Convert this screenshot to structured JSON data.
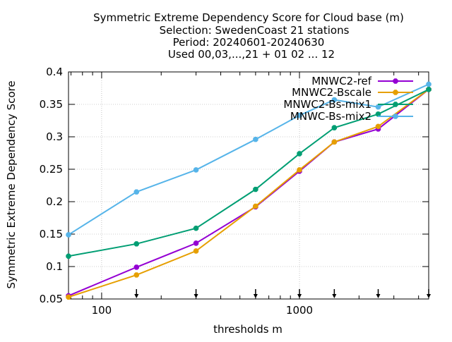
{
  "chart_data": {
    "type": "line",
    "title_lines": [
      "Symmetric Extreme Dependency Score  for Cloud base (m)",
      "Selection: SwedenCoast     21 stations",
      "Period: 20240601-20240630",
      "Used 00,03,...,21 + 01 02 ... 12"
    ],
    "xlabel": "thresholds m",
    "ylabel": "Symmetric Extreme Dependency Score",
    "x_scale": "log",
    "xlim": [
      68,
      4500
    ],
    "ylim": [
      0.05,
      0.4
    ],
    "x_ticks": [
      {
        "value": 100,
        "label": "100"
      },
      {
        "value": 1000,
        "label": "1000"
      }
    ],
    "y_ticks": [
      {
        "value": 0.05,
        "label": "0.05"
      },
      {
        "value": 0.1,
        "label": "0.1"
      },
      {
        "value": 0.15,
        "label": "0.15"
      },
      {
        "value": 0.2,
        "label": "0.2"
      },
      {
        "value": 0.25,
        "label": "0.25"
      },
      {
        "value": 0.3,
        "label": "0.3"
      },
      {
        "value": 0.35,
        "label": "0.35"
      },
      {
        "value": 0.4,
        "label": "0.4"
      }
    ],
    "threshold_markers": [
      150,
      300,
      600,
      1000,
      1500,
      2500,
      4500
    ],
    "grid": true,
    "legend_position": "top-right",
    "x": [
      68,
      150,
      300,
      600,
      1000,
      1500,
      2500,
      4500
    ],
    "series": [
      {
        "name": "MNWC2-ref",
        "color": "#9400d3",
        "values": [
          0.055,
          0.099,
          0.136,
          0.192,
          0.247,
          0.292,
          0.312,
          0.373
        ]
      },
      {
        "name": "MNWC2-Bscale",
        "color": "#e69f00",
        "values": [
          0.053,
          0.087,
          0.124,
          0.193,
          0.249,
          0.292,
          0.316,
          0.373
        ]
      },
      {
        "name": "MNWC2-Bs-mix1",
        "color": "#009e73",
        "values": [
          0.116,
          0.135,
          0.159,
          0.219,
          0.274,
          0.314,
          0.335,
          0.373
        ]
      },
      {
        "name": "MNWC-Bs-mix2",
        "color": "#56b4e9",
        "values": [
          0.149,
          0.215,
          0.249,
          0.296,
          0.333,
          0.357,
          0.346,
          0.381
        ]
      }
    ]
  }
}
